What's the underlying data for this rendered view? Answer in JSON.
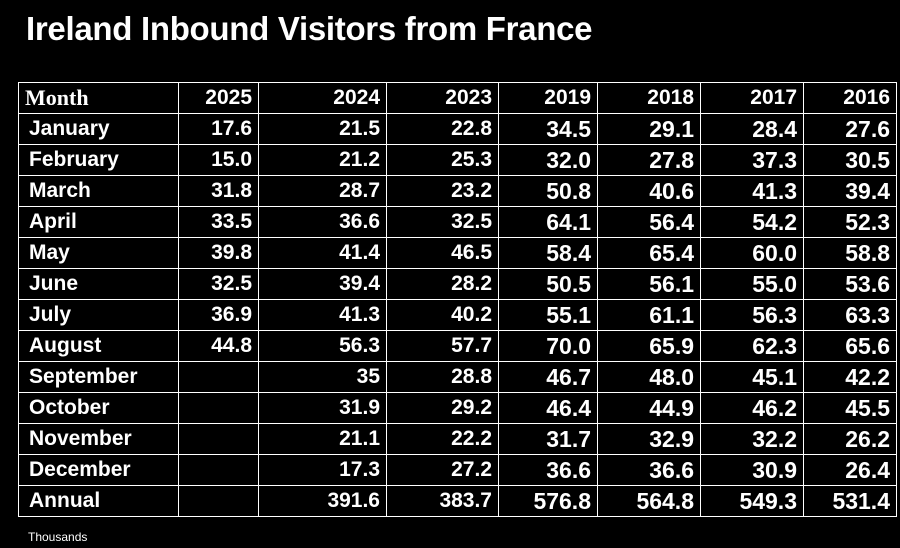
{
  "chart_data": {
    "type": "table",
    "title": "Ireland Inbound Visitors from France",
    "unit_note": "Thousands",
    "columns": [
      "Month",
      "2025",
      "2024",
      "2023",
      "2019",
      "2018",
      "2017",
      "2016"
    ],
    "rows": [
      {
        "label": "January",
        "values": [
          "17.6",
          "21.5",
          "22.8",
          "34.5",
          "29.1",
          "28.4",
          "27.6"
        ]
      },
      {
        "label": "February",
        "values": [
          "15.0",
          "21.2",
          "25.3",
          "32.0",
          "27.8",
          "37.3",
          "30.5"
        ]
      },
      {
        "label": "March",
        "values": [
          "31.8",
          "28.7",
          "23.2",
          "50.8",
          "40.6",
          "41.3",
          "39.4"
        ]
      },
      {
        "label": "April",
        "values": [
          "33.5",
          "36.6",
          "32.5",
          "64.1",
          "56.4",
          "54.2",
          "52.3"
        ]
      },
      {
        "label": "May",
        "values": [
          "39.8",
          "41.4",
          "46.5",
          "58.4",
          "65.4",
          "60.0",
          "58.8"
        ]
      },
      {
        "label": "June",
        "values": [
          "32.5",
          "39.4",
          "28.2",
          "50.5",
          "56.1",
          "55.0",
          "53.6"
        ]
      },
      {
        "label": "July",
        "values": [
          "36.9",
          "41.3",
          "40.2",
          "55.1",
          "61.1",
          "56.3",
          "63.3"
        ]
      },
      {
        "label": "August",
        "values": [
          "44.8",
          "56.3",
          "57.7",
          "70.0",
          "65.9",
          "62.3",
          "65.6"
        ]
      },
      {
        "label": "September",
        "values": [
          "",
          "35",
          "28.8",
          "46.7",
          "48.0",
          "45.1",
          "42.2"
        ]
      },
      {
        "label": "October",
        "values": [
          "",
          "31.9",
          "29.2",
          "46.4",
          "44.9",
          "46.2",
          "45.5"
        ]
      },
      {
        "label": "November",
        "values": [
          "",
          "21.1",
          "22.2",
          "31.7",
          "32.9",
          "32.2",
          "26.2"
        ]
      },
      {
        "label": "December",
        "values": [
          "",
          "17.3",
          "27.2",
          "36.6",
          "36.6",
          "30.9",
          "26.4"
        ]
      },
      {
        "label": "Annual",
        "values": [
          "",
          "391.6",
          "383.7",
          "576.8",
          "564.8",
          "549.3",
          "531.4"
        ]
      }
    ]
  },
  "colors": {
    "background": "#000000",
    "text": "#ffffff",
    "grid": "#ffffff"
  }
}
